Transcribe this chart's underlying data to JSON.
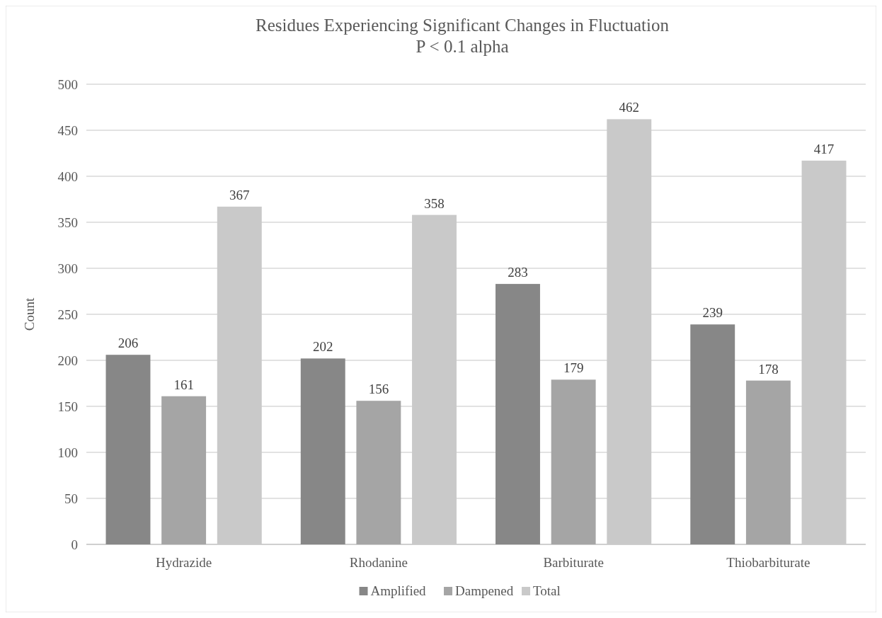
{
  "chart_data": {
    "type": "bar",
    "title": "Residues Experiencing Significant Changes in Fluctuation\nP < 0.1 alpha",
    "ylabel": "Count",
    "categories": [
      "Hydrazide",
      "Rhodanine",
      "Barbiturate",
      "Thiobarbiturate"
    ],
    "series": [
      {
        "name": "Amplified",
        "color": "#878787",
        "values": [
          206,
          202,
          283,
          239
        ]
      },
      {
        "name": "Dampened",
        "color": "#a5a5a5",
        "values": [
          161,
          156,
          179,
          178
        ]
      },
      {
        "name": "Total",
        "color": "#c9c9c9",
        "values": [
          367,
          358,
          462,
          417
        ]
      }
    ],
    "ylim": [
      0,
      500
    ],
    "yticks": [
      0,
      50,
      100,
      150,
      200,
      250,
      300,
      350,
      400,
      450,
      500
    ],
    "grid": "y",
    "legend": "bottom",
    "data_labels": true
  }
}
